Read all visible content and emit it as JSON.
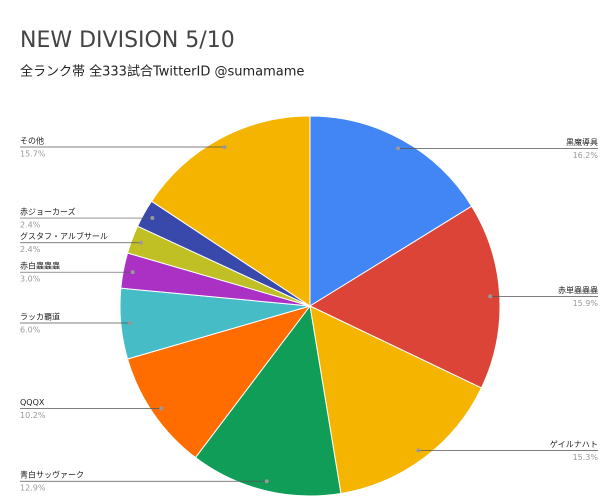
{
  "chart_data": {
    "type": "pie",
    "title": "NEW DIVISION 5/10",
    "subtitle": "全ランク帯 全333試合TwitterID @sumamame",
    "categories": [
      "黒魔導具",
      "赤単蟲蟲蟲",
      "ゲイルナハト",
      "青白サッヴァーク",
      "QQQX",
      "ラッカ覇道",
      "赤白蟲蟲蟲",
      "グスタフ・アルブサール",
      "赤ジョーカーズ",
      "その他"
    ],
    "values": [
      16.2,
      15.9,
      15.3,
      12.9,
      10.2,
      6.0,
      3.0,
      2.4,
      2.4,
      15.7
    ],
    "value_labels": [
      "16.2%",
      "15.9%",
      "15.3%",
      "12.9%",
      "10.2%",
      "6.0%",
      "3.0%",
      "2.4%",
      "2.4%",
      "15.7%"
    ],
    "colors": [
      "#4285f4",
      "#db4437",
      "#f4b400",
      "#0f9d58",
      "#ff6d00",
      "#46bdc6",
      "#ab30c4",
      "#c0bf24",
      "#3949ab",
      "#f4b400"
    ]
  }
}
